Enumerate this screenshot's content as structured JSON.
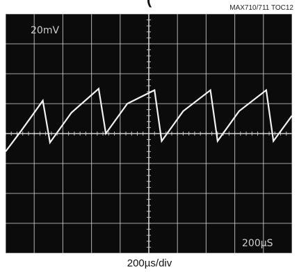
{
  "header": {
    "title_fragment": "(",
    "figure_id": "MAX710/711 TOC12"
  },
  "chart_data": {
    "type": "line",
    "title": "",
    "xlabel": "200µs/div",
    "ylabel": "",
    "grid": true,
    "divisions": {
      "x": 10,
      "y": 8
    },
    "vertical_scale_readout": "20mV",
    "horizontal_scale_readout": "200µS",
    "trace_color": "#f2f2f2",
    "background_color": "#0b0b0b",
    "grid_color": "#d8d8d8",
    "series": [
      {
        "values_x_div": [
          0.0,
          0.55,
          1.3,
          1.55,
          2.3,
          3.25,
          3.5,
          4.25,
          5.2,
          5.45,
          6.2,
          7.15,
          7.4,
          8.15,
          9.1,
          9.35,
          10.0
        ],
        "values_y_div": [
          4.6,
          3.9,
          2.9,
          4.3,
          3.3,
          2.5,
          4.0,
          3.0,
          2.55,
          4.25,
          3.25,
          2.55,
          4.25,
          3.25,
          2.55,
          4.25,
          3.4
        ]
      }
    ]
  }
}
